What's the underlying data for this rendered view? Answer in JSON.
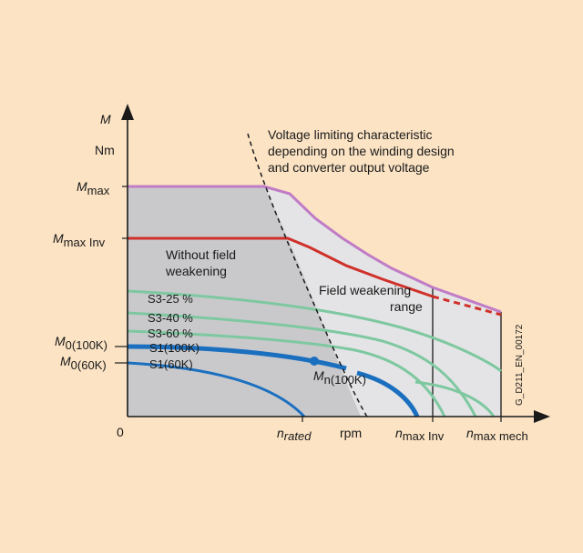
{
  "axes": {
    "y_symbol": "M",
    "y_unit": "Nm",
    "origin": "0",
    "x_unit": "rpm"
  },
  "y_labels": {
    "m_max": {
      "main": "M",
      "sub": "max"
    },
    "m_max_inv": {
      "main": "M",
      "sub": "max Inv"
    },
    "m0_100k": {
      "main": "M",
      "sub": "0(100K)"
    },
    "m0_60k": {
      "main": "M",
      "sub": "0(60K)"
    }
  },
  "x_labels": {
    "n_rated": {
      "main": "n",
      "sub": "rated"
    },
    "n_max_inv": {
      "main": "n",
      "sub": "max Inv"
    },
    "n_max_mech": {
      "main": "n",
      "sub": "max mech"
    }
  },
  "annotations": {
    "voltage_line1": "Voltage limiting characteristic",
    "voltage_line2": "depending on the winding design",
    "voltage_line3": "and converter output voltage",
    "without_fw_line1": "Without field",
    "without_fw_line2": "weakening",
    "field_weak_line1": "Field weakening",
    "field_weak_line2": "range",
    "mn_main": "M",
    "mn_sub": "n(100K)",
    "doc_code": "G_D211_EN_00172"
  },
  "curve_labels": {
    "s3_25": "S3-25 %",
    "s3_40": "S3-40 %",
    "s3_60": "S3-60 %",
    "s1_100k": "S1(100K)",
    "s1_60k": "S1(60K)"
  },
  "colors": {
    "background": "#fbe3c4",
    "dark_region": "#c9c9cc",
    "light_region": "#e4e4e6",
    "m_max_curve": "#c07cc6",
    "m_max_inv_curve": "#d0302a",
    "s3_curves": "#7ec8a0",
    "s1_curves": "#1b6fbf",
    "axis": "#1a1a1a"
  }
}
